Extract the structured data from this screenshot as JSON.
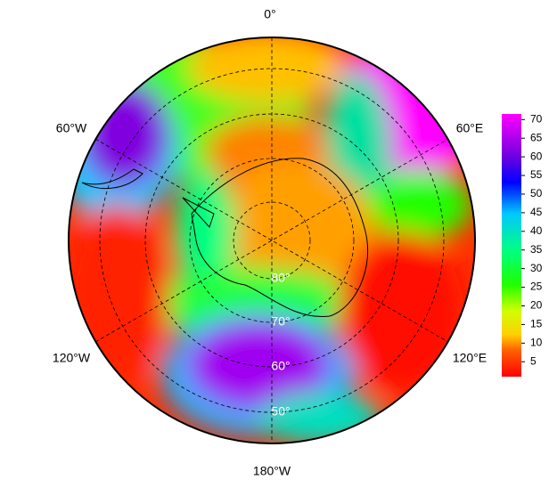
{
  "map": {
    "longitude_labels": [
      "0°",
      "60°E",
      "120°E",
      "180°W",
      "120°W",
      "60°W"
    ],
    "latitude_labels": [
      "80°",
      "70°",
      "60°",
      "50°"
    ],
    "colorbar": {
      "lim": [
        1,
        71.5
      ],
      "ticks": [
        5,
        10,
        15,
        20,
        25,
        30,
        35,
        40,
        45,
        50,
        55,
        60,
        65,
        70
      ]
    }
  }
}
